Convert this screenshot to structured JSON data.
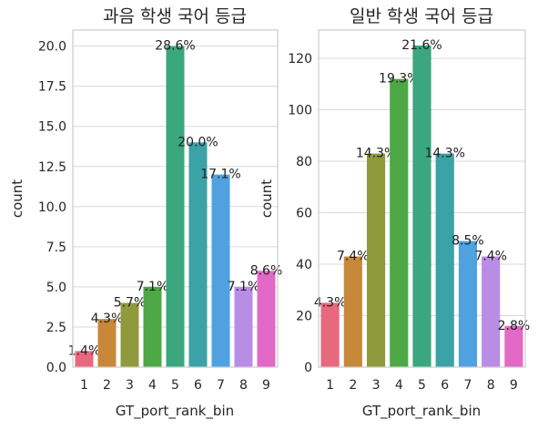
{
  "palette": [
    "#e8687e",
    "#c8883a",
    "#8f9a3d",
    "#4da845",
    "#3aa77e",
    "#3ba2a6",
    "#4fa2df",
    "#b98de6",
    "#e369c6"
  ],
  "chart_data": [
    {
      "type": "bar",
      "title": "과음 학생 국어 등급",
      "xlabel": "GT_port_rank_bin",
      "ylabel": "count",
      "categories": [
        "1",
        "2",
        "3",
        "4",
        "5",
        "6",
        "7",
        "8",
        "9"
      ],
      "values": [
        1,
        3,
        4,
        5,
        20,
        14,
        12,
        5,
        6
      ],
      "labels": [
        "1.4%",
        "4.3%",
        "5.7%",
        "7.1%",
        "28.6%",
        "20.0%",
        "17.1%",
        "7.1%",
        "8.6%"
      ],
      "ylim": [
        0,
        21
      ],
      "yticks": [
        "0.0",
        "2.5",
        "5.0",
        "7.5",
        "10.0",
        "12.5",
        "15.0",
        "17.5",
        "20.0"
      ],
      "grid": true
    },
    {
      "type": "bar",
      "title": "일반 학생 국어 등급",
      "xlabel": "GT_port_rank_bin",
      "ylabel": "count",
      "categories": [
        "1",
        "2",
        "3",
        "4",
        "5",
        "6",
        "7",
        "8",
        "9"
      ],
      "values": [
        25,
        43,
        83,
        112,
        125,
        83,
        49,
        43,
        16
      ],
      "labels": [
        "4.3%",
        "7.4%",
        "14.3%",
        "19.3%",
        "21.6%",
        "14.3%",
        "8.5%",
        "7.4%",
        "2.8%"
      ],
      "ylim": [
        0,
        131
      ],
      "yticks": [
        "0",
        "20",
        "40",
        "60",
        "80",
        "100",
        "120"
      ],
      "grid": true
    }
  ]
}
